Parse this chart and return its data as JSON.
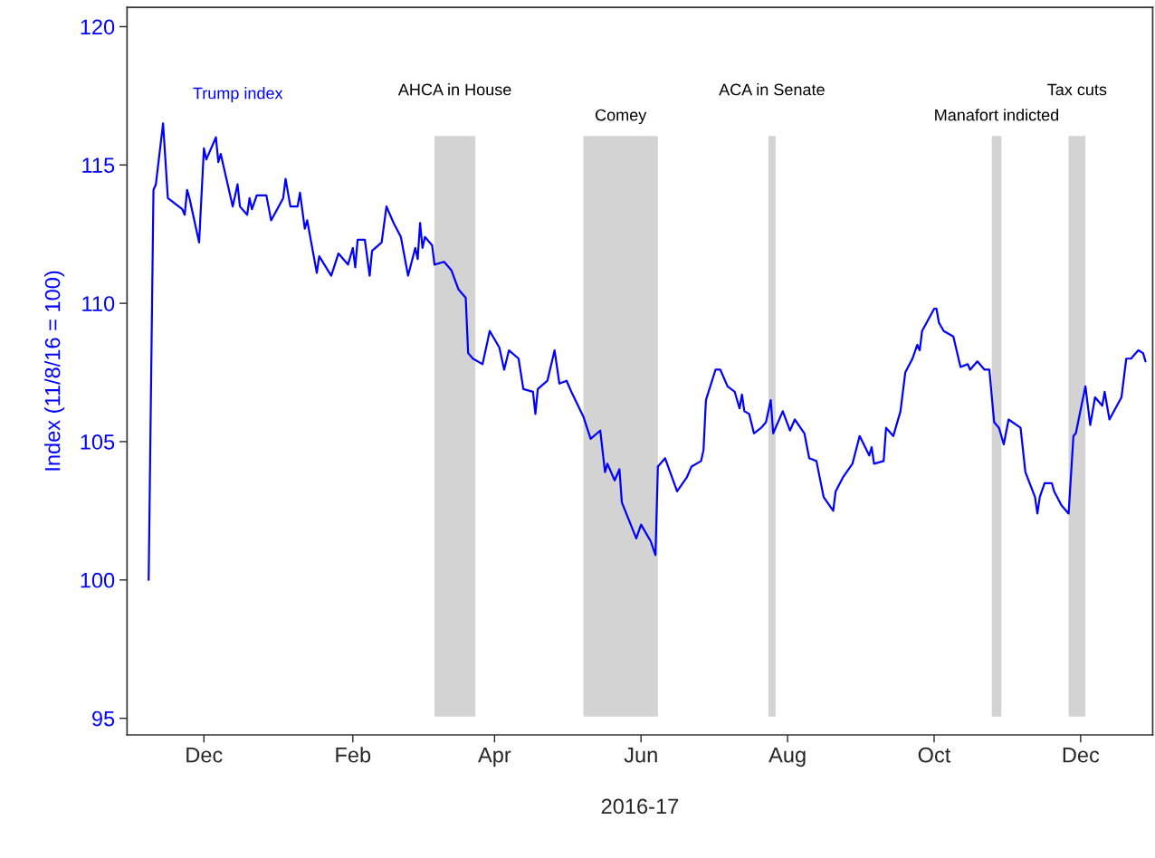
{
  "chart_data": {
    "type": "line",
    "xlabel": "2016-17",
    "ylabel": "Index (11/8/16 = 100)",
    "xlim": [
      "2016-10-30",
      "2017-12-31"
    ],
    "xticks": [
      {
        "value": "2016-12-01",
        "label": "Dec"
      },
      {
        "value": "2017-02-01",
        "label": "Feb"
      },
      {
        "value": "2017-04-01",
        "label": "Apr"
      },
      {
        "value": "2017-06-01",
        "label": "Jun"
      },
      {
        "value": "2017-08-01",
        "label": "Aug"
      },
      {
        "value": "2017-10-01",
        "label": "Oct"
      },
      {
        "value": "2017-12-01",
        "label": "Dec"
      }
    ],
    "ylim": [
      94.4,
      120.7
    ],
    "yticks": [
      95,
      100,
      105,
      110,
      115,
      120
    ],
    "grid": false,
    "bands": [
      {
        "axis": "x",
        "from": "2017-03-07",
        "to": "2017-03-24",
        "label": "AHCA in House",
        "color": "#d3d3d3"
      },
      {
        "axis": "x",
        "from": "2017-05-08",
        "to": "2017-06-08",
        "label": "Comey",
        "color": "#d3d3d3"
      },
      {
        "axis": "x",
        "from": "2017-07-24",
        "to": "2017-07-27",
        "label": "ACA in Senate",
        "color": "#d3d3d3"
      },
      {
        "axis": "x",
        "from": "2017-10-25",
        "to": "2017-10-29",
        "label": "Manafort indicted",
        "color": "#d3d3d3"
      },
      {
        "axis": "x",
        "from": "2017-11-26",
        "to": "2017-12-03",
        "label": "Tax cuts",
        "color": "#d3d3d3"
      }
    ],
    "series": [
      {
        "name": "Trump index",
        "color": "#0000ff",
        "x": [
          "2016-11-08",
          "2016-11-10",
          "2016-11-11",
          "2016-11-14",
          "2016-11-16",
          "2016-11-22",
          "2016-11-23",
          "2016-11-24",
          "2016-11-25",
          "2016-11-29",
          "2016-12-01",
          "2016-12-02",
          "2016-12-06",
          "2016-12-07",
          "2016-12-08",
          "2016-12-13",
          "2016-12-15",
          "2016-12-16",
          "2016-12-19",
          "2016-12-20",
          "2016-12-21",
          "2016-12-23",
          "2016-12-27",
          "2016-12-29",
          "2017-01-03",
          "2017-01-04",
          "2017-01-06",
          "2017-01-09",
          "2017-01-10",
          "2017-01-12",
          "2017-01-13",
          "2017-01-17",
          "2017-01-18",
          "2017-01-23",
          "2017-01-26",
          "2017-01-30",
          "2017-02-01",
          "2017-02-02",
          "2017-02-03",
          "2017-02-06",
          "2017-02-08",
          "2017-02-09",
          "2017-02-13",
          "2017-02-15",
          "2017-02-18",
          "2017-02-21",
          "2017-02-24",
          "2017-02-27",
          "2017-02-28",
          "2017-03-01",
          "2017-03-02",
          "2017-03-03",
          "2017-03-06",
          "2017-03-07",
          "2017-03-11",
          "2017-03-14",
          "2017-03-17",
          "2017-03-20",
          "2017-03-21",
          "2017-03-23",
          "2017-03-27",
          "2017-03-30",
          "2017-04-03",
          "2017-04-05",
          "2017-04-07",
          "2017-04-11",
          "2017-04-13",
          "2017-04-17",
          "2017-04-18",
          "2017-04-19",
          "2017-04-23",
          "2017-04-26",
          "2017-04-28",
          "2017-05-01",
          "2017-05-03",
          "2017-05-08",
          "2017-05-11",
          "2017-05-15",
          "2017-05-17",
          "2017-05-18",
          "2017-05-21",
          "2017-05-23",
          "2017-05-24",
          "2017-05-30",
          "2017-06-01",
          "2017-06-05",
          "2017-06-07",
          "2017-06-08",
          "2017-06-11",
          "2017-06-16",
          "2017-06-20",
          "2017-06-22",
          "2017-06-26",
          "2017-06-27",
          "2017-06-28",
          "2017-07-02",
          "2017-07-04",
          "2017-07-07",
          "2017-07-10",
          "2017-07-12",
          "2017-07-13",
          "2017-07-14",
          "2017-07-16",
          "2017-07-18",
          "2017-07-21",
          "2017-07-23",
          "2017-07-25",
          "2017-07-26",
          "2017-07-30",
          "2017-08-02",
          "2017-08-04",
          "2017-08-08",
          "2017-08-10",
          "2017-08-13",
          "2017-08-16",
          "2017-08-20",
          "2017-08-21",
          "2017-08-24",
          "2017-08-28",
          "2017-08-31",
          "2017-09-04",
          "2017-09-05",
          "2017-09-06",
          "2017-09-10",
          "2017-09-11",
          "2017-09-14",
          "2017-09-17",
          "2017-09-19",
          "2017-09-22",
          "2017-09-24",
          "2017-09-25",
          "2017-09-26",
          "2017-10-01",
          "2017-10-02",
          "2017-10-03",
          "2017-10-05",
          "2017-10-09",
          "2017-10-12",
          "2017-10-15",
          "2017-10-16",
          "2017-10-19",
          "2017-10-22",
          "2017-10-24",
          "2017-10-26",
          "2017-10-28",
          "2017-10-30",
          "2017-11-01",
          "2017-11-06",
          "2017-11-08",
          "2017-11-12",
          "2017-11-13",
          "2017-11-14",
          "2017-11-16",
          "2017-11-19",
          "2017-11-20",
          "2017-11-23",
          "2017-11-26",
          "2017-11-28",
          "2017-11-29",
          "2017-12-03",
          "2017-12-05",
          "2017-12-07",
          "2017-12-10",
          "2017-12-11",
          "2017-12-13",
          "2017-12-18",
          "2017-12-20",
          "2017-12-22",
          "2017-12-25",
          "2017-12-27",
          "2017-12-28"
        ],
        "values": [
          100.0,
          114.1,
          114.3,
          116.5,
          113.8,
          113.4,
          113.2,
          114.1,
          113.8,
          112.2,
          115.6,
          115.2,
          116.0,
          115.1,
          115.4,
          113.5,
          114.3,
          113.5,
          113.2,
          113.8,
          113.4,
          113.9,
          113.9,
          113.0,
          113.8,
          114.5,
          113.5,
          113.5,
          114.0,
          112.7,
          113.0,
          111.1,
          111.7,
          111.0,
          111.8,
          111.4,
          112.0,
          111.3,
          112.3,
          112.3,
          111.0,
          111.9,
          112.2,
          113.5,
          112.9,
          112.4,
          111.0,
          112.0,
          111.6,
          112.9,
          112.0,
          112.4,
          112.1,
          111.4,
          111.5,
          111.2,
          110.5,
          110.2,
          108.2,
          108.0,
          107.8,
          109.0,
          108.4,
          107.6,
          108.3,
          108.0,
          106.9,
          106.8,
          106.0,
          106.9,
          107.2,
          108.3,
          107.1,
          107.2,
          106.8,
          105.9,
          105.1,
          105.4,
          103.9,
          104.2,
          103.6,
          104.0,
          102.8,
          101.5,
          102.0,
          101.4,
          100.9,
          104.1,
          104.4,
          103.2,
          103.7,
          104.1,
          104.3,
          104.7,
          106.5,
          107.6,
          107.6,
          107.0,
          106.8,
          106.2,
          106.7,
          106.1,
          106.0,
          105.3,
          105.5,
          105.7,
          106.5,
          105.3,
          106.1,
          105.4,
          105.8,
          105.3,
          104.4,
          104.3,
          103.0,
          102.5,
          103.2,
          103.7,
          104.2,
          105.2,
          104.5,
          104.8,
          104.2,
          104.3,
          105.5,
          105.2,
          106.1,
          107.5,
          108.0,
          108.5,
          108.3,
          109.0,
          109.8,
          109.8,
          109.3,
          109.0,
          108.8,
          107.7,
          107.8,
          107.6,
          107.9,
          107.6,
          107.6,
          105.7,
          105.5,
          104.9,
          105.8,
          105.5,
          103.9,
          103.0,
          102.4,
          103.0,
          103.5,
          103.5,
          103.2,
          102.7,
          102.4,
          105.2,
          105.3,
          107.0,
          105.6,
          106.6,
          106.3,
          106.8,
          105.8,
          106.6,
          108.0,
          108.0,
          108.3,
          108.2,
          107.9
        ]
      }
    ]
  }
}
